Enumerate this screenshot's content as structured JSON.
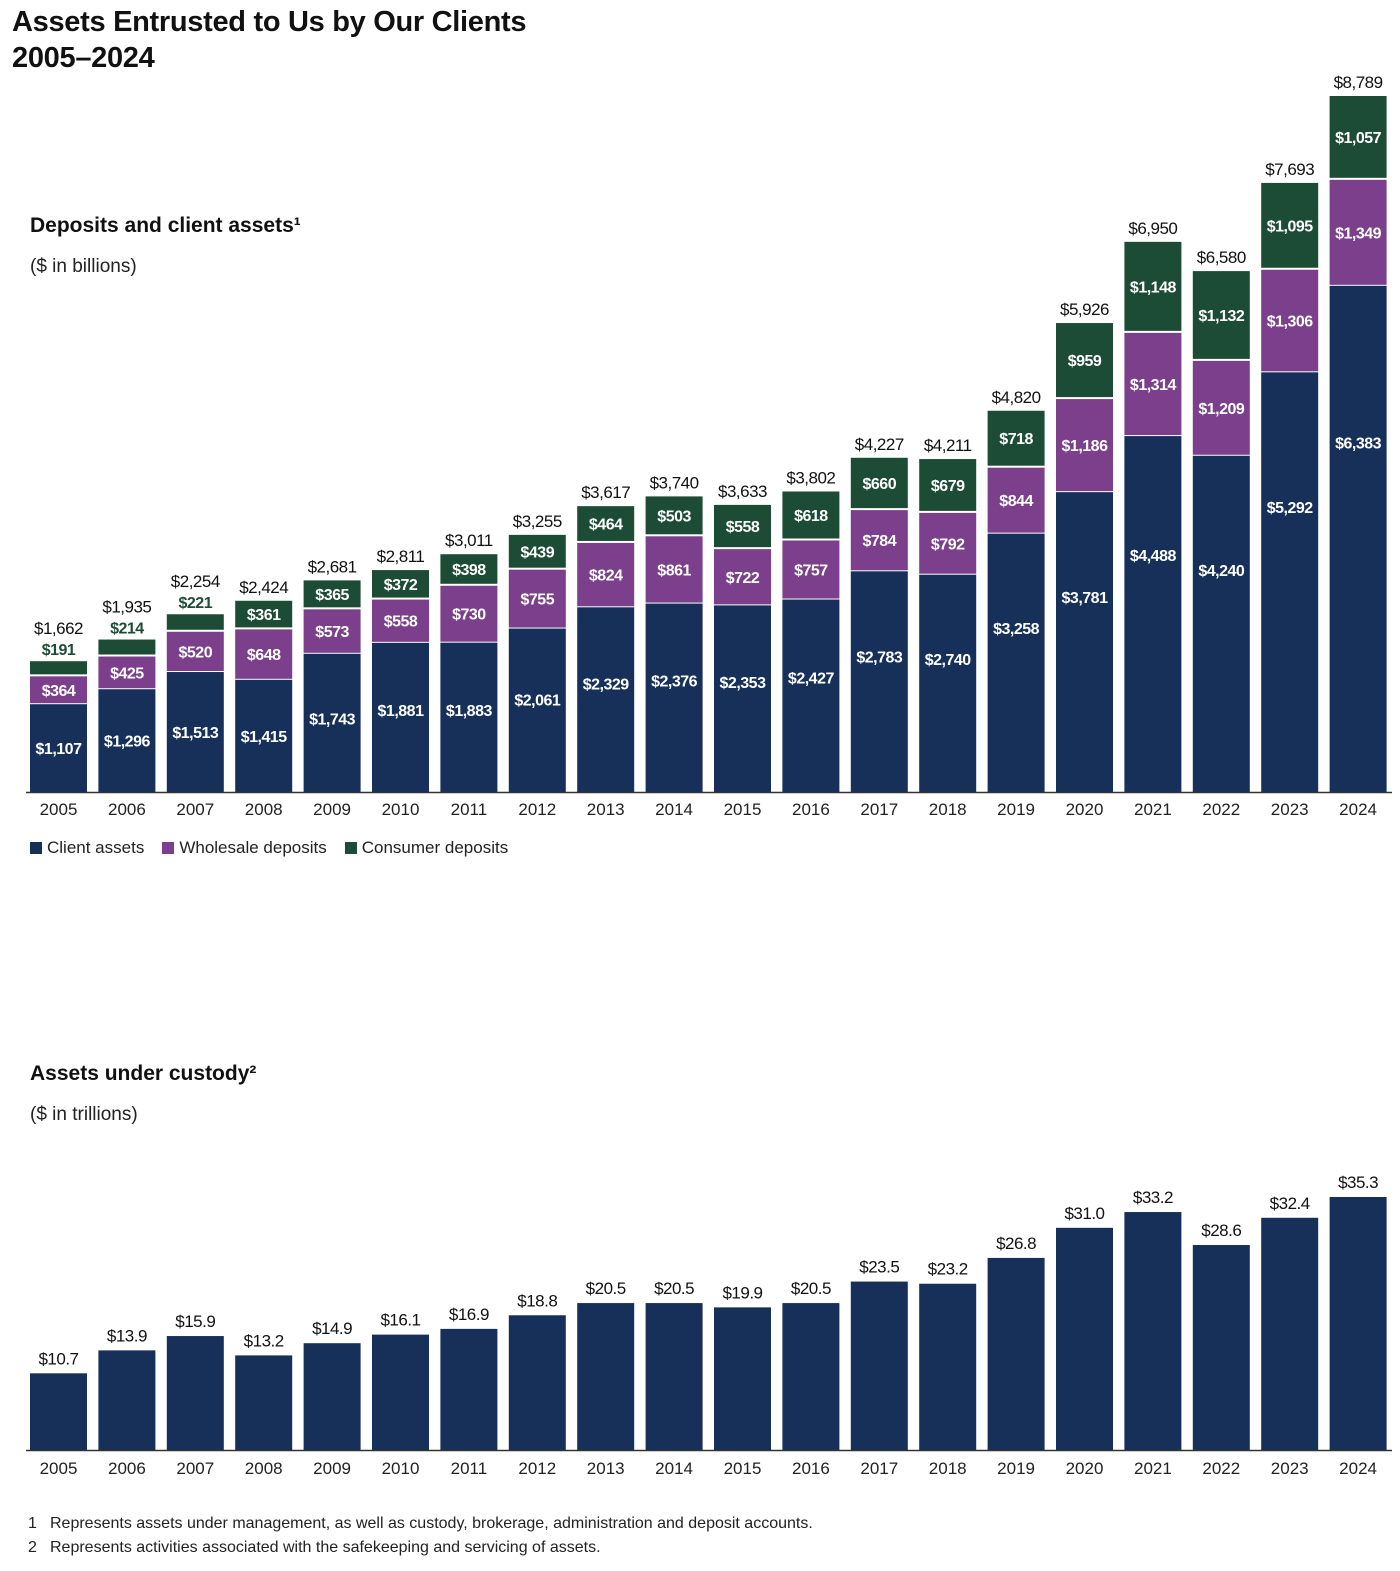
{
  "title_line1": "Assets Entrusted to Us by Our Clients",
  "title_line2": "2005–2024",
  "colors": {
    "client": "#16305a",
    "wholesale": "#7b3f8b",
    "consumer": "#1d4c36"
  },
  "chart_data": [
    {
      "type": "bar",
      "stacked": true,
      "title": "Deposits and client assets¹",
      "subtitle": "($ in billions)",
      "categories": [
        "2005",
        "2006",
        "2007",
        "2008",
        "2009",
        "2010",
        "2011",
        "2012",
        "2013",
        "2014",
        "2015",
        "2016",
        "2017",
        "2018",
        "2019",
        "2020",
        "2021",
        "2022",
        "2023",
        "2024"
      ],
      "series": [
        {
          "name": "Client assets",
          "labels": [
            "$1,107",
            "$1,296",
            "$1,513",
            "$1,415",
            "$1,743",
            "$1,881",
            "$1,883",
            "$2,061",
            "$2,329",
            "$2,376",
            "$2,353",
            "$2,427",
            "$2,783",
            "$2,740",
            "$3,258",
            "$3,781",
            "$4,488",
            "$4,240",
            "$5,292",
            "$6,383"
          ],
          "values": [
            1107,
            1296,
            1513,
            1415,
            1743,
            1881,
            1883,
            2061,
            2329,
            2376,
            2353,
            2427,
            2783,
            2740,
            3258,
            3781,
            4488,
            4240,
            5292,
            6383
          ]
        },
        {
          "name": "Wholesale deposits",
          "labels": [
            "$364",
            "$425",
            "$520",
            "$648",
            "$573",
            "$558",
            "$730",
            "$755",
            "$824",
            "$861",
            "$722",
            "$757",
            "$784",
            "$792",
            "$844",
            "$1,186",
            "$1,314",
            "$1,209",
            "$1,306",
            "$1,349"
          ],
          "values": [
            364,
            425,
            520,
            648,
            573,
            558,
            730,
            755,
            824,
            861,
            722,
            757,
            784,
            792,
            844,
            1186,
            1314,
            1209,
            1306,
            1349
          ]
        },
        {
          "name": "Consumer deposits",
          "labels": [
            "$191",
            "$214",
            "$221",
            "$361",
            "$365",
            "$372",
            "$398",
            "$439",
            "$464",
            "$503",
            "$558",
            "$618",
            "$660",
            "$679",
            "$718",
            "$959",
            "$1,148",
            "$1,132",
            "$1,095",
            "$1,057"
          ],
          "values": [
            191,
            214,
            221,
            361,
            365,
            372,
            398,
            439,
            464,
            503,
            558,
            618,
            660,
            679,
            718,
            959,
            1148,
            1132,
            1095,
            1057
          ]
        }
      ],
      "totals": [
        "$1,662",
        "$1,935",
        "$2,254",
        "$2,424",
        "$2,681",
        "$2,811",
        "$3,011",
        "$3,255",
        "$3,617",
        "$3,740",
        "$3,633",
        "$3,802",
        "$4,227",
        "$4,211",
        "$4,820",
        "$5,926",
        "$6,950",
        "$6,580",
        "$7,693",
        "$8,789"
      ],
      "total_values": [
        1662,
        1935,
        2254,
        2424,
        2681,
        2811,
        3011,
        3255,
        3617,
        3740,
        3633,
        3802,
        4227,
        4211,
        4820,
        5926,
        6950,
        6580,
        7693,
        8789
      ],
      "ylim": [
        0,
        8789
      ],
      "grid": false,
      "legend": "bottom-left"
    },
    {
      "type": "bar",
      "title": "Assets under custody²",
      "subtitle": "($ in trillions)",
      "categories": [
        "2005",
        "2006",
        "2007",
        "2008",
        "2009",
        "2010",
        "2011",
        "2012",
        "2013",
        "2014",
        "2015",
        "2016",
        "2017",
        "2018",
        "2019",
        "2020",
        "2021",
        "2022",
        "2023",
        "2024"
      ],
      "values": [
        10.7,
        13.9,
        15.9,
        13.2,
        14.9,
        16.1,
        16.9,
        18.8,
        20.5,
        20.5,
        19.9,
        20.5,
        23.5,
        23.2,
        26.8,
        31.0,
        33.2,
        28.6,
        32.4,
        35.3
      ],
      "labels": [
        "$10.7",
        "$13.9",
        "$15.9",
        "$13.2",
        "$14.9",
        "$16.1",
        "$16.9",
        "$18.8",
        "$20.5",
        "$20.5",
        "$19.9",
        "$20.5",
        "$23.5",
        "$23.2",
        "$26.8",
        "$31.0",
        "$33.2",
        "$28.6",
        "$32.4",
        "$35.3"
      ],
      "ylim": [
        0,
        35.3
      ],
      "grid": false
    }
  ],
  "footnotes": [
    {
      "num": "1",
      "text": "Represents assets under management, as well as custody, brokerage, administration and deposit accounts."
    },
    {
      "num": "2",
      "text": "Represents activities associated with the safekeeping and servicing of assets."
    }
  ]
}
